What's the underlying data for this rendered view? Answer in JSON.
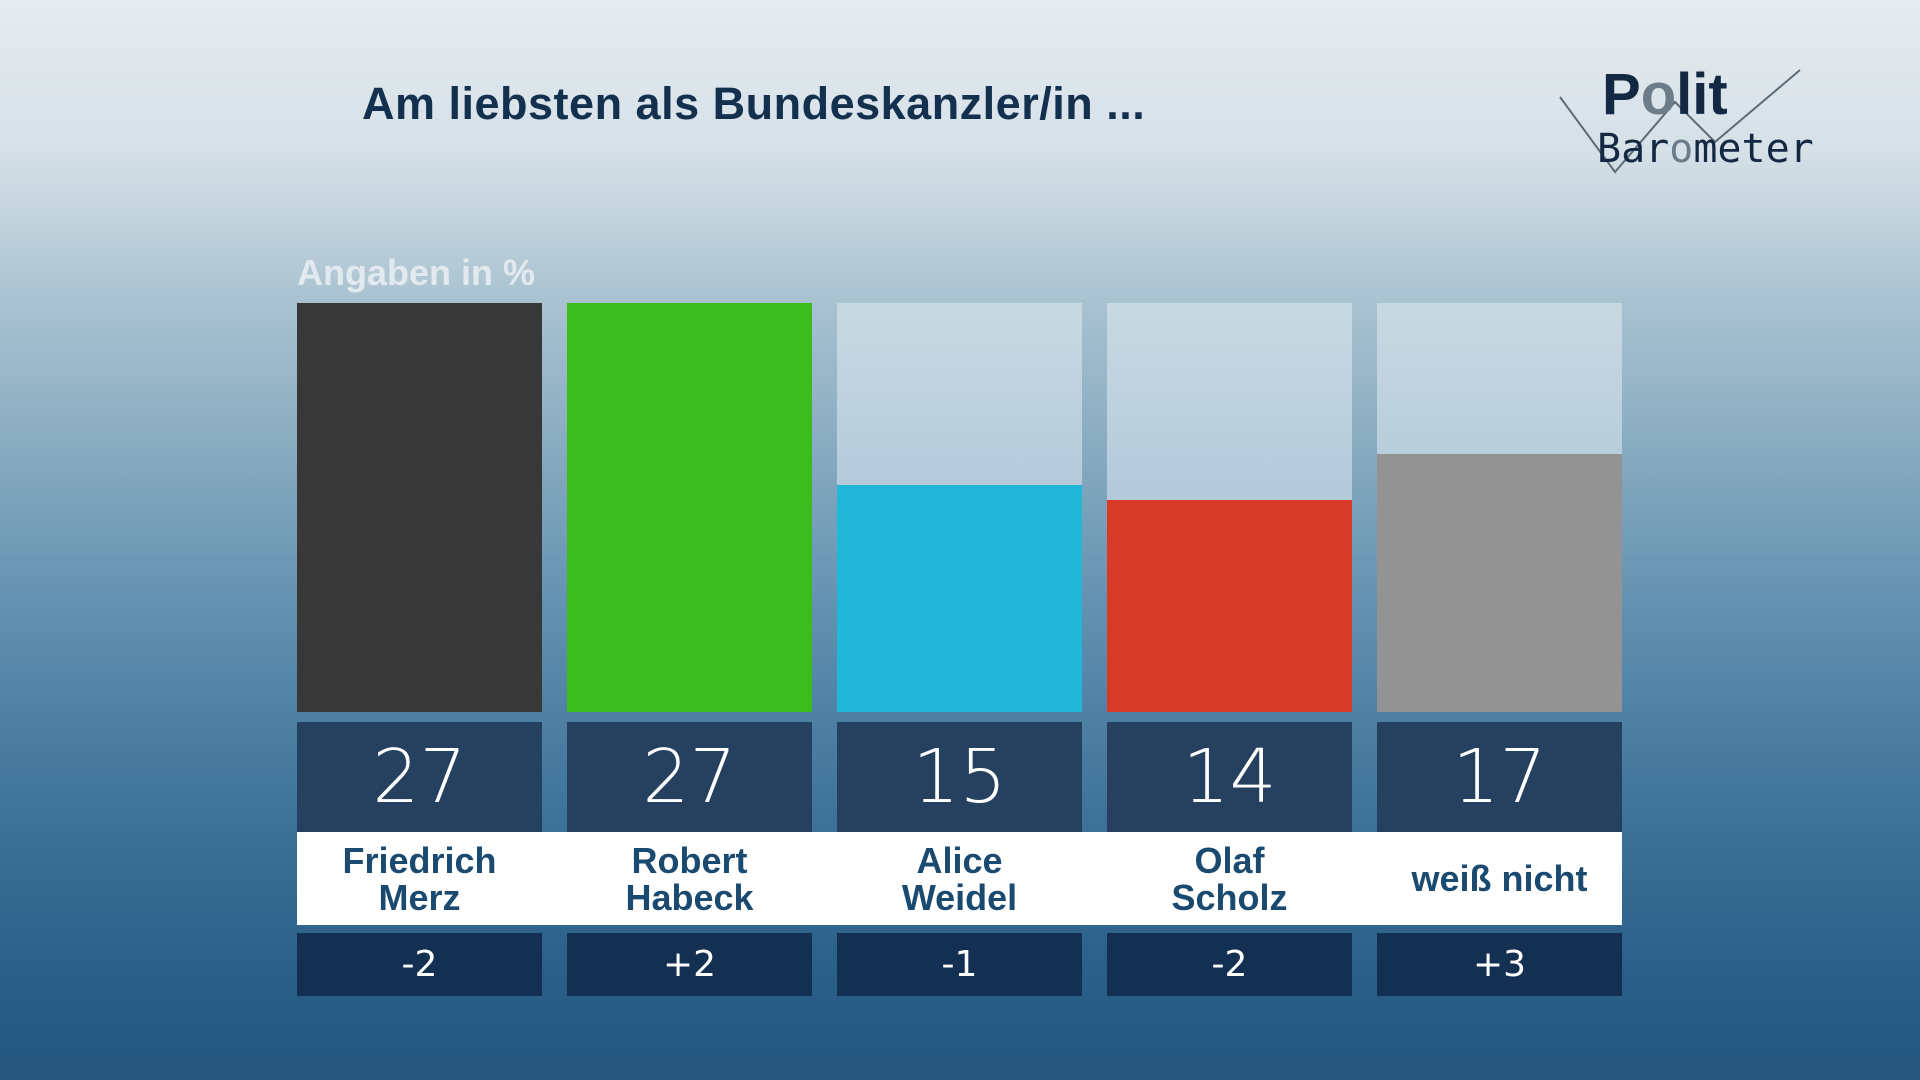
{
  "logo": {
    "line1": "Polit",
    "line2": "Barometer"
  },
  "chart_data": {
    "type": "bar",
    "title": "Am liebsten als Bundeskanzler/in ...",
    "ylabel": "Angaben in %",
    "categories": [
      "Friedrich\nMerz",
      "Robert\nHabeck",
      "Alice\nWeidel",
      "Olaf\nScholz",
      "weiß nicht"
    ],
    "values": [
      27,
      27,
      15,
      14,
      17
    ],
    "value_labels": [
      "27",
      "27",
      "15",
      "14",
      "17"
    ],
    "changes": [
      "-2",
      "+2",
      "-1",
      "-2",
      "+3"
    ],
    "colors": [
      "#383838",
      "#3cbb1f",
      "#20b7d8",
      "#d83a28",
      "#939393"
    ],
    "ylim": [
      0,
      27
    ]
  }
}
